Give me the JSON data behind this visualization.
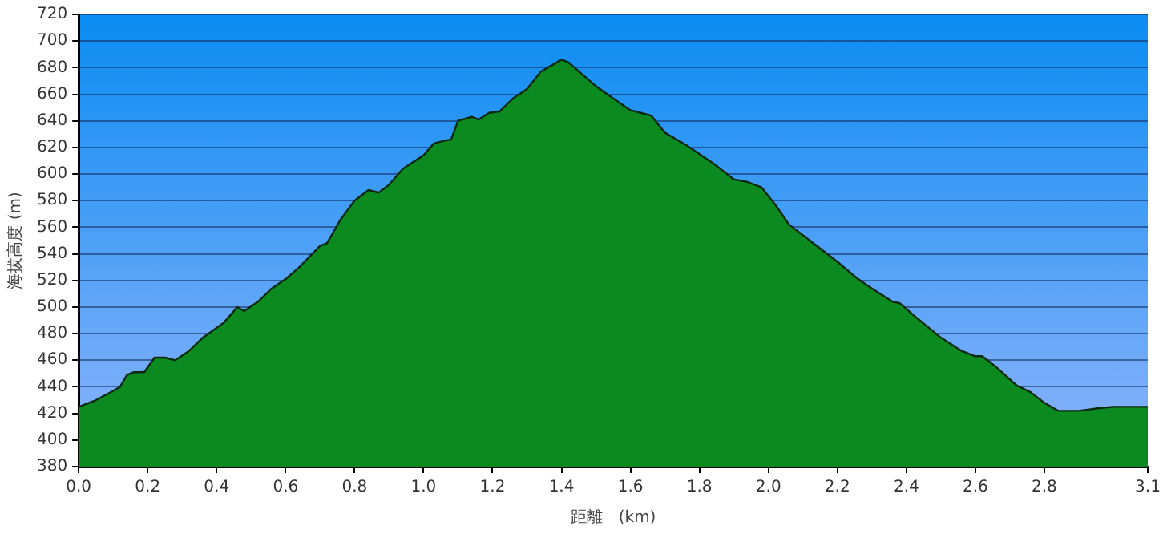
{
  "chart_data": {
    "type": "area",
    "xlabel": "距離　(km)",
    "ylabel": "海拔高度 (m)",
    "xlim": [
      0,
      3.1
    ],
    "xticks": [
      {
        "value": 0,
        "label": "0.0"
      },
      {
        "value": 0.2,
        "label": "0.2"
      },
      {
        "value": 0.4,
        "label": "0.4"
      },
      {
        "value": 0.6,
        "label": "0.6"
      },
      {
        "value": 0.8,
        "label": "0.8"
      },
      {
        "value": 1,
        "label": "1.0"
      },
      {
        "value": 1.2,
        "label": "1.2"
      },
      {
        "value": 1.4,
        "label": "1.4"
      },
      {
        "value": 1.6,
        "label": "1.6"
      },
      {
        "value": 1.8,
        "label": "1.8"
      },
      {
        "value": 2,
        "label": "2.0"
      },
      {
        "value": 2.2,
        "label": "2.2"
      },
      {
        "value": 2.4,
        "label": "2.4"
      },
      {
        "value": 2.6,
        "label": "2.6"
      },
      {
        "value": 2.8,
        "label": "2.8"
      },
      {
        "value": 3.1,
        "label": "3.1"
      }
    ],
    "ylim": [
      380,
      720
    ],
    "yticks": [
      380,
      400,
      420,
      440,
      460,
      480,
      500,
      520,
      540,
      560,
      580,
      600,
      620,
      640,
      660,
      680,
      700,
      720
    ],
    "grid": "y",
    "legend": false,
    "series": [
      {
        "color": "#0b8a1f",
        "x": [
          0,
          0.05,
          0.1,
          0.12,
          0.14,
          0.16,
          0.19,
          0.22,
          0.25,
          0.28,
          0.32,
          0.36,
          0.42,
          0.46,
          0.48,
          0.52,
          0.56,
          0.6,
          0.64,
          0.7,
          0.72,
          0.76,
          0.8,
          0.84,
          0.87,
          0.9,
          0.94,
          1,
          1.03,
          1.06,
          1.08,
          1.1,
          1.14,
          1.16,
          1.19,
          1.22,
          1.26,
          1.3,
          1.34,
          1.38,
          1.4,
          1.42,
          1.46,
          1.5,
          1.56,
          1.6,
          1.63,
          1.66,
          1.7,
          1.76,
          1.84,
          1.9,
          1.94,
          1.98,
          2.02,
          2.06,
          2.12,
          2.2,
          2.26,
          2.3,
          2.36,
          2.38,
          2.42,
          2.5,
          2.56,
          2.6,
          2.62,
          2.66,
          2.72,
          2.76,
          2.8,
          2.84,
          2.9,
          2.96,
          3,
          3.1
        ],
        "values": [
          425,
          430,
          437,
          440,
          449,
          451,
          451,
          462,
          462,
          460,
          467,
          477,
          488,
          500,
          497,
          504,
          514,
          521,
          530,
          546,
          548,
          566,
          580,
          588,
          586,
          592,
          604,
          614,
          623,
          625,
          626,
          640,
          643,
          641,
          646,
          647,
          657,
          664,
          677,
          683,
          686,
          684,
          675,
          666,
          655,
          648,
          646,
          644,
          631,
          622,
          608,
          596,
          594,
          590,
          577,
          562,
          550,
          534,
          521,
          514,
          504,
          503,
          494,
          477,
          467,
          463,
          463,
          455,
          441,
          436,
          428,
          422,
          422,
          424,
          425,
          425
        ]
      }
    ]
  }
}
